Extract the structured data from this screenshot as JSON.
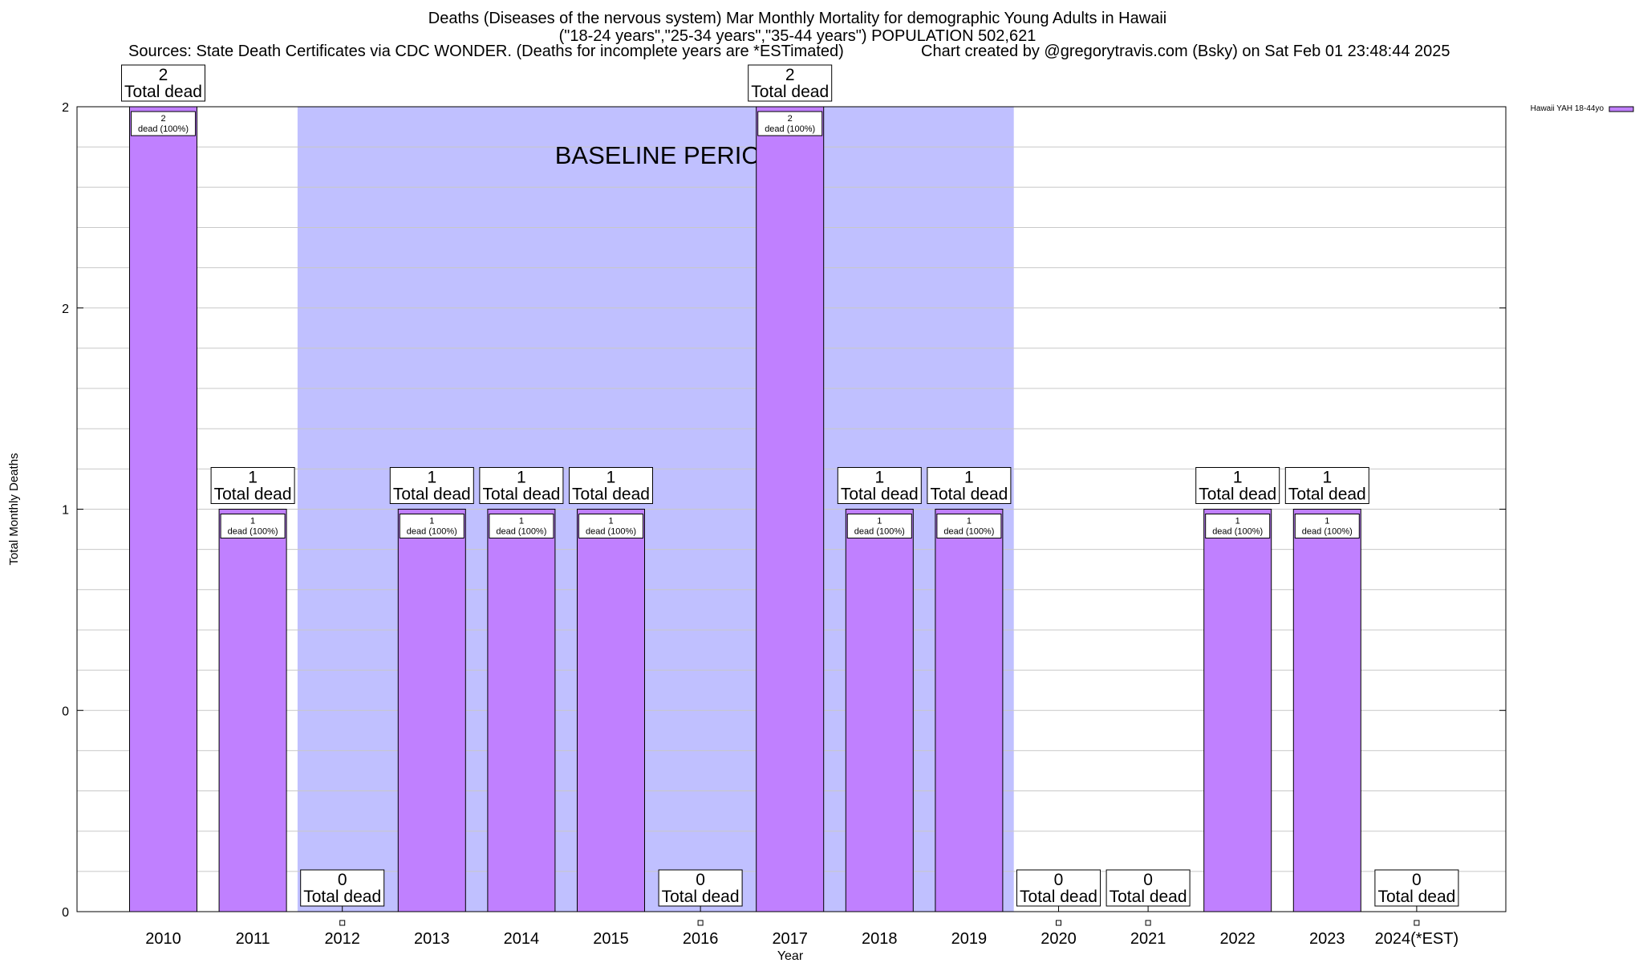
{
  "header": {
    "title_line1": "Deaths (Diseases of the nervous system) Mar Monthly Mortality for demographic Young Adults in Hawaii",
    "title_line2": "(\"18-24 years\",\"25-34 years\",\"35-44 years\") POPULATION 502,621",
    "sources": "Sources: State Death Certificates via CDC WONDER. (Deaths for incomplete years are *ESTimated)",
    "credit": "Chart created by @gregorytravis.com (Bsky) on Sat Feb 01 23:48:44 2025"
  },
  "colors": {
    "bar": "#c080ff",
    "baseline": "#c0c0ff",
    "grid": "#c8c8c8"
  },
  "chart_data": {
    "type": "bar",
    "title": "Deaths (Diseases of the nervous system) Mar Monthly Mortality for demographic Young Adults in Hawaii",
    "xlabel": "Year",
    "ylabel": "Total Monthly Deaths",
    "ylim": [
      0,
      2
    ],
    "y_tick_labels": [
      "0",
      "0",
      "1",
      "2",
      "2"
    ],
    "categories": [
      "2010",
      "2011",
      "2012",
      "2013",
      "2014",
      "2015",
      "2016",
      "2017",
      "2018",
      "2019",
      "2020",
      "2021",
      "2022",
      "2023",
      "2024(*EST)"
    ],
    "series": [
      {
        "name": "Hawaii YAH 18-44yo",
        "values": [
          2,
          1,
          0,
          1,
          1,
          1,
          0,
          2,
          1,
          1,
          0,
          0,
          1,
          1,
          0
        ]
      }
    ],
    "total_label_suffix": "Total dead",
    "inner_labels": [
      "2|dead (100%)",
      "1|dead (100%)",
      "",
      "1|dead (100%)",
      "1|dead (100%)",
      "1|dead (100%)",
      "",
      "2|dead (100%)",
      "1|dead (100%)",
      "1|dead (100%)",
      "",
      "",
      "1|dead (100%)",
      "1|dead (100%)",
      ""
    ],
    "baseline_period": {
      "label": "BASELINE PERIOD",
      "start": "2012",
      "end": "2019"
    },
    "legend": {
      "position": "top-right",
      "label": "Hawaii YAH 18-44yo"
    }
  }
}
